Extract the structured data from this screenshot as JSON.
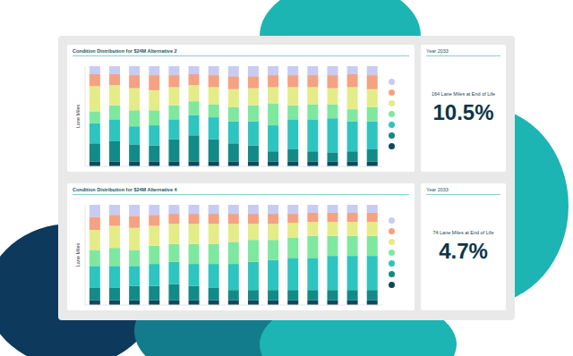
{
  "chart_data": [
    {
      "type": "bar",
      "title": "Condition Distribution for $24M Alternative 2",
      "y_label": "Lane Miles",
      "categories": [
        null,
        null,
        null,
        null,
        null,
        null,
        null,
        null,
        null,
        null,
        null,
        null,
        null,
        null,
        null
      ],
      "series": [
        {
          "color": "#0d4a5e",
          "values": [
            5,
            5,
            5,
            5,
            5,
            5,
            5,
            5,
            5,
            5,
            5,
            5,
            5,
            5,
            5
          ]
        },
        {
          "color": "#128a88",
          "values": [
            18,
            20,
            17,
            16,
            22,
            26,
            22,
            18,
            16,
            10,
            12,
            10,
            9,
            10,
            12
          ]
        },
        {
          "color": "#2ec4c0",
          "values": [
            20,
            22,
            18,
            20,
            20,
            20,
            22,
            22,
            24,
            26,
            30,
            32,
            34,
            30,
            28
          ]
        },
        {
          "color": "#7ee89f",
          "values": [
            12,
            14,
            16,
            15,
            14,
            14,
            13,
            14,
            16,
            22,
            14,
            15,
            14,
            12,
            14
          ]
        },
        {
          "color": "#e4ec88",
          "values": [
            25,
            20,
            22,
            20,
            18,
            16,
            17,
            18,
            17,
            16,
            18,
            17,
            16,
            22,
            18
          ]
        },
        {
          "color": "#f5a282",
          "values": [
            12,
            11,
            13,
            15,
            12,
            11,
            12,
            13,
            12,
            12,
            12,
            12,
            13,
            13,
            14
          ]
        },
        {
          "color": "#c8cbf2",
          "values": [
            8,
            8,
            9,
            9,
            9,
            8,
            9,
            10,
            10,
            9,
            9,
            9,
            9,
            8,
            9
          ]
        }
      ],
      "ylim": [
        0,
        100
      ],
      "stacked": true,
      "grid": false,
      "tick_labels": false
    },
    {
      "type": "bar",
      "title": "Condition Distribution for $24M Alternative 4",
      "y_label": "Lane Miles",
      "categories": [
        null,
        null,
        null,
        null,
        null,
        null,
        null,
        null,
        null,
        null,
        null,
        null,
        null,
        null,
        null
      ],
      "series": [
        {
          "color": "#0d4a5e",
          "values": [
            5,
            5,
            5,
            5,
            5,
            5,
            5,
            5,
            5,
            5,
            5,
            5,
            5,
            5,
            5
          ]
        },
        {
          "color": "#128a88",
          "values": [
            12,
            12,
            14,
            14,
            16,
            14,
            12,
            10,
            10,
            10,
            10,
            10,
            10,
            10,
            10
          ]
        },
        {
          "color": "#2ec4c0",
          "values": [
            22,
            22,
            20,
            22,
            22,
            22,
            24,
            26,
            28,
            30,
            32,
            32,
            34,
            34,
            34
          ]
        },
        {
          "color": "#7ee89f",
          "values": [
            16,
            18,
            16,
            18,
            18,
            20,
            20,
            22,
            22,
            20,
            20,
            22,
            20,
            20,
            20
          ]
        },
        {
          "color": "#e4ec88",
          "values": [
            20,
            22,
            22,
            20,
            20,
            20,
            20,
            18,
            16,
            16,
            15,
            14,
            14,
            14,
            14
          ]
        },
        {
          "color": "#f5a282",
          "values": [
            13,
            11,
            12,
            11,
            10,
            10,
            10,
            10,
            10,
            10,
            9,
            9,
            9,
            9,
            9
          ]
        },
        {
          "color": "#c8cbf2",
          "values": [
            12,
            10,
            11,
            10,
            9,
            9,
            9,
            9,
            9,
            9,
            9,
            8,
            8,
            8,
            8
          ]
        }
      ],
      "ylim": [
        0,
        100
      ],
      "stacked": true,
      "grid": false,
      "tick_labels": false
    }
  ],
  "cards": [
    {
      "heading": "Year 2033",
      "text": "164 Lane Miles at End of Life",
      "value": "10.5%"
    },
    {
      "heading": "Year 2033",
      "text": "74 Lane Miles at End of Life",
      "value": "4.7%"
    }
  ]
}
